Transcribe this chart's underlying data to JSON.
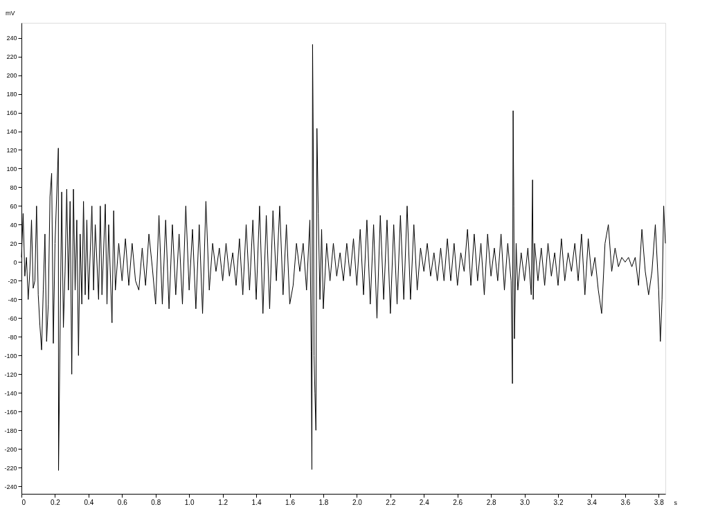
{
  "chart_data": {
    "type": "line",
    "xlabel": "s",
    "ylabel": "mV",
    "xlim": [
      0,
      3.84
    ],
    "ylim": [
      -248,
      256
    ],
    "xticks": [
      0,
      0.2,
      0.4,
      0.6,
      0.8,
      {
        "value": 1,
        "label": "1.0"
      },
      1.2,
      1.4,
      1.6,
      1.8,
      {
        "value": 2,
        "label": "2.0"
      },
      2.2,
      2.4,
      2.6,
      2.8,
      {
        "value": 3,
        "label": "3.0"
      },
      3.2,
      3.4,
      3.6,
      3.8
    ],
    "yticks": [
      -240,
      -220,
      -200,
      -180,
      -160,
      -140,
      -120,
      -100,
      -80,
      -60,
      -40,
      -20,
      0,
      20,
      40,
      60,
      80,
      100,
      120,
      140,
      160,
      180,
      200,
      220,
      240
    ],
    "grid": false,
    "marker": "none",
    "line_style": "solid",
    "series": [
      {
        "color": "#000000",
        "x": [
          0.0,
          0.01,
          0.02,
          0.03,
          0.04,
          0.05,
          0.06,
          0.07,
          0.08,
          0.09,
          0.1,
          0.11,
          0.12,
          0.13,
          0.14,
          0.15,
          0.16,
          0.17,
          0.18,
          0.19,
          0.2,
          0.22,
          0.221,
          0.24,
          0.25,
          0.26,
          0.27,
          0.28,
          0.29,
          0.3,
          0.31,
          0.32,
          0.33,
          0.34,
          0.35,
          0.36,
          0.37,
          0.38,
          0.39,
          0.4,
          0.42,
          0.43,
          0.44,
          0.46,
          0.47,
          0.48,
          0.5,
          0.51,
          0.52,
          0.54,
          0.55,
          0.56,
          0.58,
          0.6,
          0.62,
          0.64,
          0.66,
          0.68,
          0.7,
          0.72,
          0.74,
          0.76,
          0.78,
          0.8,
          0.82,
          0.84,
          0.86,
          0.88,
          0.9,
          0.92,
          0.94,
          0.96,
          0.98,
          1.0,
          1.02,
          1.04,
          1.06,
          1.08,
          1.1,
          1.12,
          1.14,
          1.16,
          1.18,
          1.2,
          1.22,
          1.24,
          1.26,
          1.28,
          1.3,
          1.32,
          1.34,
          1.36,
          1.38,
          1.4,
          1.42,
          1.44,
          1.46,
          1.48,
          1.5,
          1.52,
          1.54,
          1.56,
          1.58,
          1.6,
          1.62,
          1.64,
          1.66,
          1.68,
          1.7,
          1.72,
          1.728,
          1.732,
          1.736,
          1.74,
          1.745,
          1.75,
          1.756,
          1.762,
          1.77,
          1.78,
          1.79,
          1.8,
          1.82,
          1.84,
          1.86,
          1.88,
          1.9,
          1.92,
          1.94,
          1.96,
          1.98,
          2.0,
          2.02,
          2.04,
          2.06,
          2.08,
          2.1,
          2.12,
          2.14,
          2.16,
          2.18,
          2.2,
          2.22,
          2.24,
          2.26,
          2.28,
          2.3,
          2.32,
          2.34,
          2.36,
          2.38,
          2.4,
          2.42,
          2.44,
          2.46,
          2.48,
          2.5,
          2.52,
          2.54,
          2.56,
          2.58,
          2.6,
          2.62,
          2.64,
          2.66,
          2.68,
          2.7,
          2.72,
          2.74,
          2.76,
          2.78,
          2.8,
          2.82,
          2.84,
          2.86,
          2.88,
          2.9,
          2.92,
          2.928,
          2.932,
          2.936,
          2.94,
          2.95,
          2.96,
          2.98,
          3.0,
          3.02,
          3.04,
          3.048,
          3.052,
          3.06,
          3.08,
          3.1,
          3.12,
          3.14,
          3.16,
          3.18,
          3.2,
          3.22,
          3.24,
          3.26,
          3.28,
          3.3,
          3.32,
          3.34,
          3.36,
          3.38,
          3.4,
          3.42,
          3.44,
          3.46,
          3.48,
          3.5,
          3.52,
          3.54,
          3.56,
          3.58,
          3.6,
          3.62,
          3.64,
          3.66,
          3.68,
          3.7,
          3.72,
          3.74,
          3.76,
          3.78,
          3.8,
          3.81,
          3.82,
          3.83,
          3.84
        ],
        "values": [
          5,
          52,
          -15,
          5,
          -40,
          -10,
          45,
          -28,
          -20,
          60,
          -35,
          -68,
          -94,
          -30,
          30,
          -85,
          -45,
          70,
          95,
          -87,
          20,
          122,
          -223,
          75,
          -70,
          -10,
          78,
          -30,
          65,
          -120,
          78,
          -30,
          45,
          -100,
          30,
          -45,
          65,
          -35,
          45,
          -40,
          60,
          -30,
          40,
          -40,
          60,
          -35,
          62,
          -45,
          40,
          -65,
          55,
          -30,
          20,
          -20,
          25,
          -25,
          20,
          -20,
          -30,
          15,
          -25,
          30,
          -5,
          -45,
          50,
          -45,
          45,
          -50,
          40,
          -35,
          30,
          -45,
          60,
          -30,
          35,
          -50,
          40,
          -55,
          65,
          -30,
          20,
          -10,
          15,
          -20,
          20,
          -15,
          10,
          -25,
          25,
          -35,
          40,
          -30,
          45,
          -40,
          60,
          -55,
          50,
          -50,
          55,
          -20,
          60,
          -35,
          40,
          -45,
          -25,
          20,
          -10,
          20,
          -30,
          45,
          -96,
          -222,
          233,
          130,
          -100,
          -140,
          -180,
          143,
          52,
          -40,
          35,
          -50,
          20,
          -20,
          20,
          -15,
          10,
          -20,
          20,
          -15,
          25,
          -25,
          35,
          -35,
          45,
          -45,
          40,
          -60,
          50,
          -40,
          45,
          -55,
          40,
          -45,
          50,
          -40,
          60,
          -40,
          40,
          -30,
          15,
          -10,
          20,
          -15,
          10,
          -20,
          15,
          -20,
          25,
          -20,
          20,
          -25,
          10,
          -10,
          35,
          -25,
          30,
          -20,
          20,
          -35,
          30,
          -15,
          15,
          -20,
          30,
          -30,
          20,
          -20,
          -130,
          162,
          60,
          -82,
          20,
          -30,
          10,
          -20,
          15,
          -35,
          88,
          -40,
          20,
          -20,
          15,
          -25,
          20,
          -15,
          10,
          -25,
          25,
          -20,
          10,
          -10,
          20,
          -20,
          30,
          -35,
          25,
          -15,
          5,
          -30,
          -55,
          20,
          40,
          -10,
          15,
          -5,
          5,
          0,
          5,
          -5,
          5,
          -25,
          35,
          -10,
          -35,
          -10,
          40,
          -30,
          -85,
          -40,
          60,
          20
        ]
      }
    ]
  }
}
